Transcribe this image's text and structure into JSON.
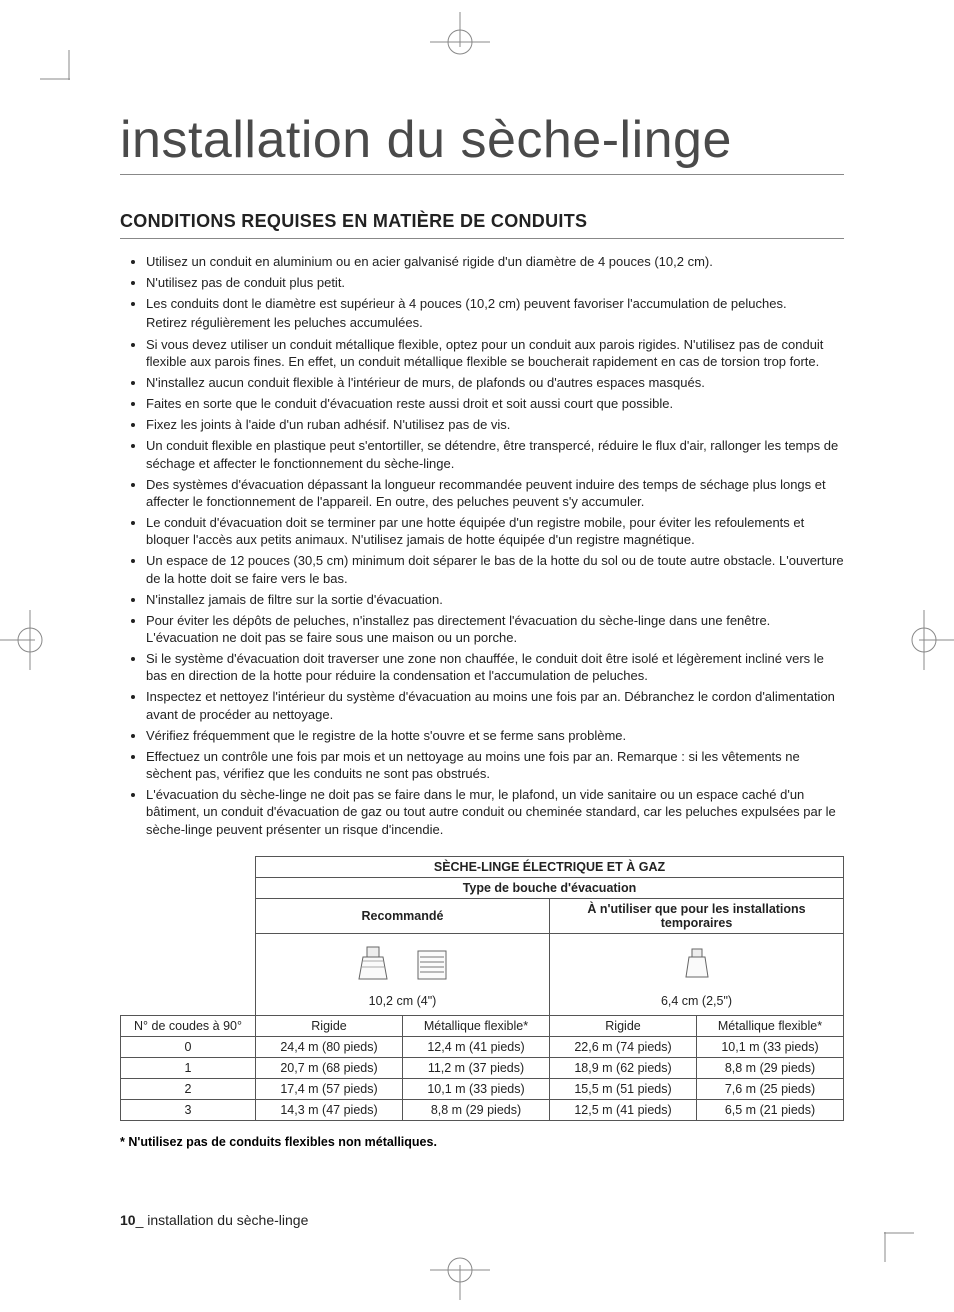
{
  "title": "installation du sèche-linge",
  "subtitle": "CONDITIONS REQUISES EN MATIÈRE DE CONDUITS",
  "bullets": [
    {
      "text": "Utilisez un conduit en aluminium ou en acier galvanisé rigide d'un diamètre de 4 pouces (10,2 cm)."
    },
    {
      "text": "N'utilisez pas de conduit plus petit."
    },
    {
      "text": "Les conduits dont le diamètre est supérieur à 4 pouces (10,2 cm) peuvent favoriser l'accumulation de peluches.",
      "sub": "Retirez régulièrement les peluches accumulées."
    },
    {
      "text": "Si vous devez utiliser un conduit métallique flexible, optez pour un conduit aux parois rigides. N'utilisez pas de conduit flexible aux parois fines. En effet, un conduit métallique flexible se boucherait rapidement en cas de torsion trop forte."
    },
    {
      "text": "N'installez aucun conduit flexible à l'intérieur de murs, de plafonds ou d'autres espaces masqués."
    },
    {
      "text": "Faites en sorte que le conduit d'évacuation reste aussi droit et soit aussi court que possible."
    },
    {
      "text": "Fixez les joints à l'aide d'un ruban adhésif. N'utilisez pas de vis."
    },
    {
      "text": "Un conduit flexible en plastique peut s'entortiller, se détendre, être transpercé, réduire le flux d'air, rallonger les temps de séchage et affecter le fonctionnement du sèche-linge."
    },
    {
      "text": "Des systèmes d'évacuation dépassant la longueur recommandée peuvent induire des temps de séchage plus longs et affecter le fonctionnement de l'appareil. En outre, des peluches peuvent s'y accumuler."
    },
    {
      "text": "Le conduit d'évacuation doit se terminer par une hotte équipée d'un registre mobile, pour éviter les refoulements et bloquer l'accès aux petits animaux. N'utilisez jamais de hotte équipée d'un registre magnétique."
    },
    {
      "text": "Un espace de 12 pouces (30,5 cm) minimum doit séparer le bas de la hotte du sol ou de toute autre obstacle. L'ouverture de la hotte doit se faire vers le bas."
    },
    {
      "text": "N'installez jamais de filtre sur la sortie d'évacuation."
    },
    {
      "text": "Pour éviter les dépôts de peluches, n'installez pas directement l'évacuation du sèche-linge dans une fenêtre. L'évacuation ne doit pas se faire sous une maison ou un porche."
    },
    {
      "text": "Si le système d'évacuation doit traverser une zone non chauffée, le conduit doit être isolé et légèrement incliné vers le bas en direction de la hotte pour réduire la condensation et l'accumulation de peluches."
    },
    {
      "text": "Inspectez et nettoyez l'intérieur du système d'évacuation au moins une fois par an. Débranchez le cordon d'alimentation avant de procéder au nettoyage."
    },
    {
      "text": "Vérifiez fréquemment que le registre de la hotte s'ouvre et se ferme sans problème."
    },
    {
      "text": "Effectuez un contrôle une fois par mois et un nettoyage au moins une fois par an. Remarque : si les vêtements ne sèchent pas, vérifiez que les conduits ne sont pas obstrués."
    },
    {
      "text": "L'évacuation du sèche-linge ne doit pas se faire dans le mur, le plafond, un vide sanitaire ou un espace caché d'un bâtiment, un conduit d'évacuation de gaz ou tout autre conduit ou cheminée standard, car les peluches expulsées par le sèche-linge peuvent présenter un risque d'incendie."
    }
  ],
  "table": {
    "title_row": "SÈCHE-LINGE ÉLECTRIQUE ET À GAZ",
    "subtitle_row": "Type de bouche d'évacuation",
    "col_recommended": "Recommandé",
    "col_temporary": "À n'utiliser que pour les installations temporaires",
    "dim_large": "10,2 cm (4\")",
    "dim_small": "6,4 cm (2,5\")",
    "row_header": "N° de coudes à 90°",
    "subcols": [
      "Rigide",
      "Métallique flexible*",
      "Rigide",
      "Métallique flexible*"
    ],
    "rows": [
      {
        "label": "0",
        "cells": [
          "24,4 m (80 pieds)",
          "12,4 m (41 pieds)",
          "22,6 m (74 pieds)",
          "10,1 m (33 pieds)"
        ]
      },
      {
        "label": "1",
        "cells": [
          "20,7 m (68 pieds)",
          "11,2 m (37 pieds)",
          "18,9 m (62 pieds)",
          "8,8 m (29 pieds)"
        ]
      },
      {
        "label": "2",
        "cells": [
          "17,4 m (57 pieds)",
          "10,1 m (33 pieds)",
          "15,5 m (51 pieds)",
          "7,6 m (25 pieds)"
        ]
      },
      {
        "label": "3",
        "cells": [
          "14,3 m (47 pieds)",
          "8,8 m (29 pieds)",
          "12,5 m (41 pieds)",
          "6,5 m (21 pieds)"
        ]
      }
    ]
  },
  "footnote": "* N'utilisez pas de conduits flexibles non métalliques.",
  "footer_page": "10",
  "footer_text": "_ installation du sèche-linge",
  "colors": {
    "text": "#222",
    "rule": "#888",
    "border": "#555",
    "title": "#4a4a4a"
  }
}
